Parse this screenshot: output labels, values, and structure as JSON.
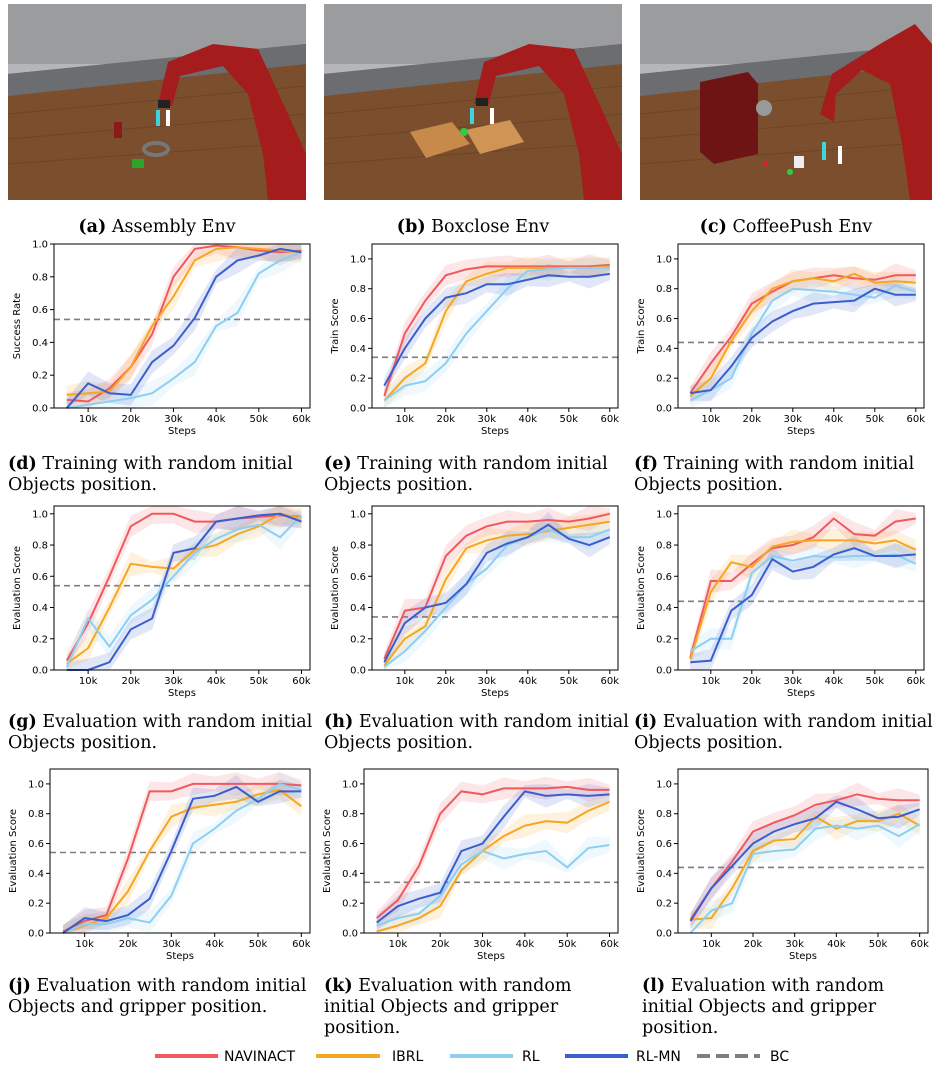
{
  "env_photos": [
    {
      "label": "(a)",
      "text": "Assembly Env"
    },
    {
      "label": "(b)",
      "text": "Boxclose Env"
    },
    {
      "label": "(c)",
      "text": "CoffeePush Env"
    }
  ],
  "captions": [
    {
      "label": "(d)",
      "text": "Training with random initial Objects position."
    },
    {
      "label": "(e)",
      "text": "Training with random initial Objects position."
    },
    {
      "label": "(f)",
      "text": "Training with random initial Objects position."
    },
    {
      "label": "(g)",
      "text": "Evaluation with random initial Objects position."
    },
    {
      "label": "(h)",
      "text": "Evaluation with random initial Objects position."
    },
    {
      "label": "(i)",
      "text": "Evaluation with random initial Objects position."
    },
    {
      "label": "(j)",
      "text": "Evaluation with random initial Objects and gripper position."
    },
    {
      "label": "(k)",
      "text": "Evaluation with random initial Objects and gripper position."
    },
    {
      "label": "(l)",
      "text": "Evaluation with random initial Objects and gripper position."
    }
  ],
  "legend": [
    {
      "name": "NAVINACT",
      "color": "#f05a5f",
      "dashed": false
    },
    {
      "name": "IBRL",
      "color": "#f5a623",
      "dashed": false
    },
    {
      "name": "RL",
      "color": "#8dcff2",
      "dashed": false
    },
    {
      "name": "RL-MN",
      "color": "#3a5fcd",
      "dashed": false
    },
    {
      "name": "BC",
      "color": "#7f7f7f",
      "dashed": true
    }
  ],
  "chart_data": [
    {
      "type": "line",
      "xlabel": "Steps",
      "ylabel": "Success Rate",
      "xlim": [
        2,
        62
      ],
      "ylim": [
        0,
        1.0
      ],
      "xticks": [
        "10k",
        "20k",
        "30k",
        "40k",
        "50k",
        "60k"
      ],
      "yticks": [
        "0.0",
        "0.2",
        "0.4",
        "0.6",
        "0.8",
        "1.0"
      ],
      "bc": 0.54,
      "x": [
        5,
        10,
        15,
        20,
        25,
        30,
        35,
        40,
        45,
        50,
        55,
        60
      ],
      "series": [
        {
          "name": "NAVINACT",
          "values": [
            0.05,
            0.04,
            0.12,
            0.25,
            0.45,
            0.8,
            0.97,
            0.99,
            0.98,
            0.96,
            0.95,
            0.96
          ]
        },
        {
          "name": "IBRL",
          "values": [
            0.08,
            0.09,
            0.1,
            0.25,
            0.5,
            0.68,
            0.9,
            0.97,
            0.98,
            0.97,
            0.96,
            0.95
          ]
        },
        {
          "name": "RL",
          "values": [
            0.0,
            0.02,
            0.04,
            0.06,
            0.09,
            0.18,
            0.28,
            0.5,
            0.58,
            0.82,
            0.9,
            0.95
          ]
        },
        {
          "name": "RL-MN",
          "values": [
            0.0,
            0.15,
            0.09,
            0.08,
            0.28,
            0.38,
            0.55,
            0.8,
            0.9,
            0.93,
            0.97,
            0.95
          ]
        }
      ]
    },
    {
      "type": "line",
      "xlabel": "Steps",
      "ylabel": "Train Score",
      "xlim": [
        2,
        62
      ],
      "ylim": [
        0,
        1.1
      ],
      "xticks": [
        "10k",
        "20k",
        "30k",
        "40k",
        "50k",
        "60k"
      ],
      "yticks": [
        "0.0",
        "0.2",
        "0.4",
        "0.6",
        "0.8",
        "1.0"
      ],
      "bc": 0.34,
      "x": [
        5,
        10,
        15,
        20,
        25,
        30,
        35,
        40,
        45,
        50,
        55,
        60
      ],
      "series": [
        {
          "name": "NAVINACT",
          "values": [
            0.08,
            0.5,
            0.72,
            0.89,
            0.93,
            0.95,
            0.95,
            0.95,
            0.95,
            0.95,
            0.95,
            0.96
          ]
        },
        {
          "name": "IBRL",
          "values": [
            0.05,
            0.2,
            0.3,
            0.65,
            0.85,
            0.9,
            0.94,
            0.94,
            0.94,
            0.94,
            0.94,
            0.95
          ]
        },
        {
          "name": "RL",
          "values": [
            0.05,
            0.15,
            0.18,
            0.3,
            0.5,
            0.65,
            0.8,
            0.92,
            0.93,
            0.94,
            0.94,
            0.94
          ]
        },
        {
          "name": "RL-MN",
          "values": [
            0.15,
            0.4,
            0.6,
            0.74,
            0.77,
            0.83,
            0.83,
            0.86,
            0.89,
            0.88,
            0.88,
            0.9
          ]
        }
      ]
    },
    {
      "type": "line",
      "xlabel": "Steps",
      "ylabel": "Train Score",
      "xlim": [
        2,
        62
      ],
      "ylim": [
        0,
        1.1
      ],
      "xticks": [
        "10k",
        "20k",
        "30k",
        "40k",
        "50k",
        "60k"
      ],
      "yticks": [
        "0.0",
        "0.2",
        "0.4",
        "0.6",
        "0.8",
        "1.0"
      ],
      "bc": 0.44,
      "x": [
        5,
        10,
        15,
        20,
        25,
        30,
        35,
        40,
        45,
        50,
        55,
        60
      ],
      "series": [
        {
          "name": "NAVINACT",
          "values": [
            0.1,
            0.3,
            0.48,
            0.7,
            0.78,
            0.85,
            0.87,
            0.89,
            0.87,
            0.86,
            0.89,
            0.89
          ]
        },
        {
          "name": "IBRL",
          "values": [
            0.08,
            0.2,
            0.45,
            0.65,
            0.8,
            0.85,
            0.87,
            0.85,
            0.9,
            0.84,
            0.85,
            0.84
          ]
        },
        {
          "name": "RL",
          "values": [
            0.05,
            0.12,
            0.2,
            0.5,
            0.72,
            0.8,
            0.79,
            0.78,
            0.76,
            0.74,
            0.82,
            0.78
          ]
        },
        {
          "name": "RL-MN",
          "values": [
            0.1,
            0.12,
            0.28,
            0.47,
            0.58,
            0.65,
            0.7,
            0.71,
            0.72,
            0.8,
            0.76,
            0.76
          ]
        }
      ]
    },
    {
      "type": "line",
      "xlabel": "Steps",
      "ylabel": "Evaluation Score",
      "xlim": [
        2,
        62
      ],
      "ylim": [
        0,
        1.05
      ],
      "xticks": [
        "10k",
        "20k",
        "30k",
        "40k",
        "50k",
        "60k"
      ],
      "yticks": [
        "0.0",
        "0.2",
        "0.4",
        "0.6",
        "0.8",
        "1.0"
      ],
      "bc": 0.54,
      "x": [
        5,
        10,
        15,
        20,
        25,
        30,
        35,
        40,
        45,
        50,
        55,
        60
      ],
      "series": [
        {
          "name": "NAVINACT",
          "values": [
            0.06,
            0.3,
            0.6,
            0.92,
            1.0,
            1.0,
            0.95,
            0.95,
            0.97,
            0.98,
            0.99,
            0.98
          ]
        },
        {
          "name": "IBRL",
          "values": [
            0.04,
            0.14,
            0.4,
            0.68,
            0.66,
            0.65,
            0.77,
            0.8,
            0.87,
            0.92,
            1.0,
            0.97
          ]
        },
        {
          "name": "RL",
          "values": [
            0.02,
            0.33,
            0.15,
            0.35,
            0.45,
            0.6,
            0.75,
            0.84,
            0.9,
            0.93,
            0.85,
            0.99
          ]
        },
        {
          "name": "RL-MN",
          "values": [
            0.0,
            0.0,
            0.05,
            0.26,
            0.33,
            0.75,
            0.78,
            0.95,
            0.97,
            0.99,
            1.0,
            0.95
          ]
        }
      ]
    },
    {
      "type": "line",
      "xlabel": "Steps",
      "ylabel": "Evaluation Score",
      "xlim": [
        2,
        62
      ],
      "ylim": [
        0,
        1.05
      ],
      "xticks": [
        "10k",
        "20k",
        "30k",
        "40k",
        "50k",
        "60k"
      ],
      "yticks": [
        "0.0",
        "0.2",
        "0.4",
        "0.6",
        "0.8",
        "1.0"
      ],
      "bc": 0.34,
      "x": [
        5,
        10,
        15,
        20,
        25,
        30,
        35,
        40,
        45,
        50,
        55,
        60
      ],
      "series": [
        {
          "name": "NAVINACT",
          "values": [
            0.07,
            0.38,
            0.4,
            0.73,
            0.86,
            0.92,
            0.95,
            0.95,
            0.96,
            0.95,
            0.97,
            1.0
          ]
        },
        {
          "name": "IBRL",
          "values": [
            0.03,
            0.2,
            0.28,
            0.58,
            0.78,
            0.83,
            0.86,
            0.87,
            0.89,
            0.91,
            0.93,
            0.95
          ]
        },
        {
          "name": "RL",
          "values": [
            0.02,
            0.12,
            0.25,
            0.4,
            0.55,
            0.65,
            0.8,
            0.85,
            0.9,
            0.85,
            0.85,
            0.9
          ]
        },
        {
          "name": "RL-MN",
          "values": [
            0.05,
            0.3,
            0.4,
            0.43,
            0.55,
            0.75,
            0.81,
            0.85,
            0.93,
            0.84,
            0.8,
            0.85
          ]
        }
      ]
    },
    {
      "type": "line",
      "xlabel": "Steps",
      "ylabel": "Evaluation Score",
      "xlim": [
        2,
        62
      ],
      "ylim": [
        0,
        1.05
      ],
      "xticks": [
        "10k",
        "20k",
        "30k",
        "40k",
        "50k",
        "60k"
      ],
      "yticks": [
        "0.0",
        "0.2",
        "0.4",
        "0.6",
        "0.8",
        "1.0"
      ],
      "bc": 0.44,
      "x": [
        5,
        10,
        15,
        20,
        25,
        30,
        35,
        40,
        45,
        50,
        55,
        60
      ],
      "series": [
        {
          "name": "NAVINACT",
          "values": [
            0.08,
            0.57,
            0.57,
            0.68,
            0.78,
            0.8,
            0.85,
            0.97,
            0.87,
            0.86,
            0.95,
            0.97
          ]
        },
        {
          "name": "IBRL",
          "values": [
            0.07,
            0.5,
            0.69,
            0.66,
            0.79,
            0.82,
            0.83,
            0.83,
            0.83,
            0.81,
            0.83,
            0.77
          ]
        },
        {
          "name": "RL",
          "values": [
            0.12,
            0.2,
            0.2,
            0.62,
            0.73,
            0.7,
            0.73,
            0.72,
            0.73,
            0.73,
            0.74,
            0.68
          ]
        },
        {
          "name": "RL-MN",
          "values": [
            0.05,
            0.06,
            0.38,
            0.48,
            0.71,
            0.63,
            0.66,
            0.74,
            0.78,
            0.73,
            0.73,
            0.74
          ]
        }
      ]
    },
    {
      "type": "line",
      "xlabel": "Steps",
      "ylabel": "Evaluation Score",
      "xlim": [
        2,
        62
      ],
      "ylim": [
        0,
        1.1
      ],
      "xticks": [
        "10k",
        "20k",
        "30k",
        "40k",
        "50k",
        "60k"
      ],
      "yticks": [
        "0.0",
        "0.2",
        "0.4",
        "0.6",
        "0.8",
        "1.0"
      ],
      "bc": 0.54,
      "x": [
        5,
        10,
        15,
        20,
        25,
        30,
        35,
        40,
        45,
        50,
        55,
        60
      ],
      "series": [
        {
          "name": "NAVINACT",
          "values": [
            0.01,
            0.08,
            0.12,
            0.5,
            0.95,
            0.95,
            1.0,
            1.0,
            1.0,
            1.0,
            1.0,
            0.99
          ]
        },
        {
          "name": "IBRL",
          "values": [
            0.0,
            0.05,
            0.1,
            0.28,
            0.55,
            0.78,
            0.84,
            0.86,
            0.88,
            0.93,
            0.96,
            0.85
          ]
        },
        {
          "name": "RL",
          "values": [
            0.0,
            0.06,
            0.06,
            0.1,
            0.07,
            0.25,
            0.6,
            0.7,
            0.82,
            0.9,
            1.0,
            0.96
          ]
        },
        {
          "name": "RL-MN",
          "values": [
            0.0,
            0.1,
            0.08,
            0.12,
            0.23,
            0.55,
            0.9,
            0.92,
            0.98,
            0.88,
            0.95,
            0.95
          ]
        }
      ]
    },
    {
      "type": "line",
      "xlabel": "Steps",
      "ylabel": "Evaluation Score",
      "xlim": [
        2,
        62
      ],
      "ylim": [
        0,
        1.1
      ],
      "xticks": [
        "10k",
        "20k",
        "30k",
        "40k",
        "50k",
        "60k"
      ],
      "yticks": [
        "0.0",
        "0.2",
        "0.4",
        "0.6",
        "0.8",
        "1.0"
      ],
      "bc": 0.34,
      "x": [
        5,
        10,
        15,
        20,
        25,
        30,
        35,
        40,
        45,
        50,
        55,
        60
      ],
      "series": [
        {
          "name": "NAVINACT",
          "values": [
            0.1,
            0.22,
            0.45,
            0.8,
            0.95,
            0.93,
            0.97,
            0.97,
            0.97,
            0.98,
            0.96,
            0.96
          ]
        },
        {
          "name": "IBRL",
          "values": [
            0.01,
            0.05,
            0.1,
            0.18,
            0.42,
            0.55,
            0.65,
            0.72,
            0.75,
            0.74,
            0.82,
            0.88
          ]
        },
        {
          "name": "RL",
          "values": [
            0.05,
            0.1,
            0.13,
            0.25,
            0.46,
            0.55,
            0.5,
            0.53,
            0.55,
            0.44,
            0.57,
            0.59
          ]
        },
        {
          "name": "RL-MN",
          "values": [
            0.07,
            0.18,
            0.23,
            0.27,
            0.55,
            0.6,
            0.78,
            0.95,
            0.92,
            0.93,
            0.92,
            0.93
          ]
        }
      ]
    },
    {
      "type": "line",
      "xlabel": "Steps",
      "ylabel": "Evaluation Score",
      "xlim": [
        2,
        62
      ],
      "ylim": [
        0,
        1.1
      ],
      "xticks": [
        "10k",
        "20k",
        "30k",
        "40k",
        "50k",
        "60k"
      ],
      "yticks": [
        "0.0",
        "0.2",
        "0.4",
        "0.6",
        "0.8",
        "1.0"
      ],
      "bc": 0.44,
      "x": [
        5,
        10,
        15,
        20,
        25,
        30,
        35,
        40,
        45,
        50,
        55,
        60
      ],
      "series": [
        {
          "name": "NAVINACT",
          "values": [
            0.09,
            0.3,
            0.48,
            0.68,
            0.74,
            0.79,
            0.86,
            0.89,
            0.93,
            0.9,
            0.89,
            0.89
          ]
        },
        {
          "name": "IBRL",
          "values": [
            0.09,
            0.1,
            0.3,
            0.55,
            0.62,
            0.63,
            0.78,
            0.7,
            0.75,
            0.75,
            0.8,
            0.72
          ]
        },
        {
          "name": "RL",
          "values": [
            0.0,
            0.15,
            0.2,
            0.53,
            0.55,
            0.56,
            0.7,
            0.72,
            0.7,
            0.72,
            0.65,
            0.73
          ]
        },
        {
          "name": "RL-MN",
          "values": [
            0.08,
            0.3,
            0.45,
            0.6,
            0.68,
            0.73,
            0.77,
            0.88,
            0.83,
            0.77,
            0.78,
            0.83
          ]
        }
      ]
    }
  ]
}
